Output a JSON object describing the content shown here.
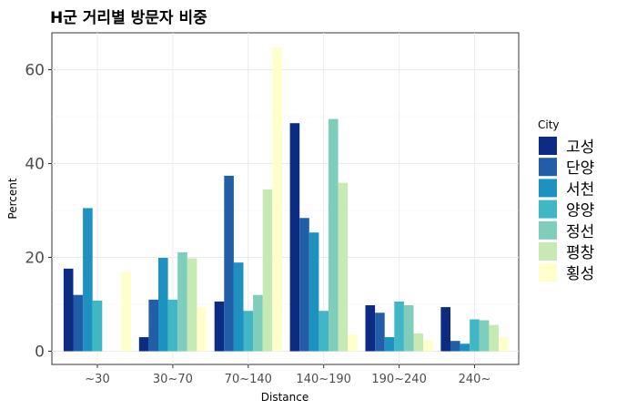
{
  "chart_data": {
    "type": "bar",
    "title": "H군 거리별 방문자 비중",
    "xlabel": "Distance",
    "ylabel": "Percent",
    "ylim": [
      0,
      68
    ],
    "yticks": [
      0,
      20,
      40,
      60
    ],
    "grid": true,
    "legend_position": "right",
    "legend_title": "City",
    "categories": [
      "~30",
      "30~70",
      "70~140",
      "140~190",
      "190~240",
      "240~"
    ],
    "series": [
      {
        "name": "고성",
        "color": "#0c2c84",
        "values": [
          17.6,
          3.0,
          10.6,
          48.6,
          9.8,
          9.4
        ]
      },
      {
        "name": "단양",
        "color": "#225ea8",
        "values": [
          12.0,
          11.0,
          37.4,
          28.4,
          8.2,
          2.2
        ]
      },
      {
        "name": "서천",
        "color": "#1d91c0",
        "values": [
          30.5,
          19.9,
          18.9,
          25.3,
          3.0,
          1.6
        ]
      },
      {
        "name": "양양",
        "color": "#41b6c4",
        "values": [
          10.8,
          11.0,
          8.6,
          8.6,
          10.6,
          6.8
        ]
      },
      {
        "name": "정선",
        "color": "#7fcdbb",
        "values": [
          0,
          21.1,
          12.0,
          49.5,
          9.8,
          6.6
        ]
      },
      {
        "name": "평창",
        "color": "#c7e9b4",
        "values": [
          0,
          19.8,
          34.5,
          35.9,
          3.8,
          5.6
        ]
      },
      {
        "name": "횡성",
        "color": "#ffffcc",
        "values": [
          17.0,
          9.4,
          64.8,
          3.6,
          2.4,
          3.0
        ]
      }
    ]
  }
}
